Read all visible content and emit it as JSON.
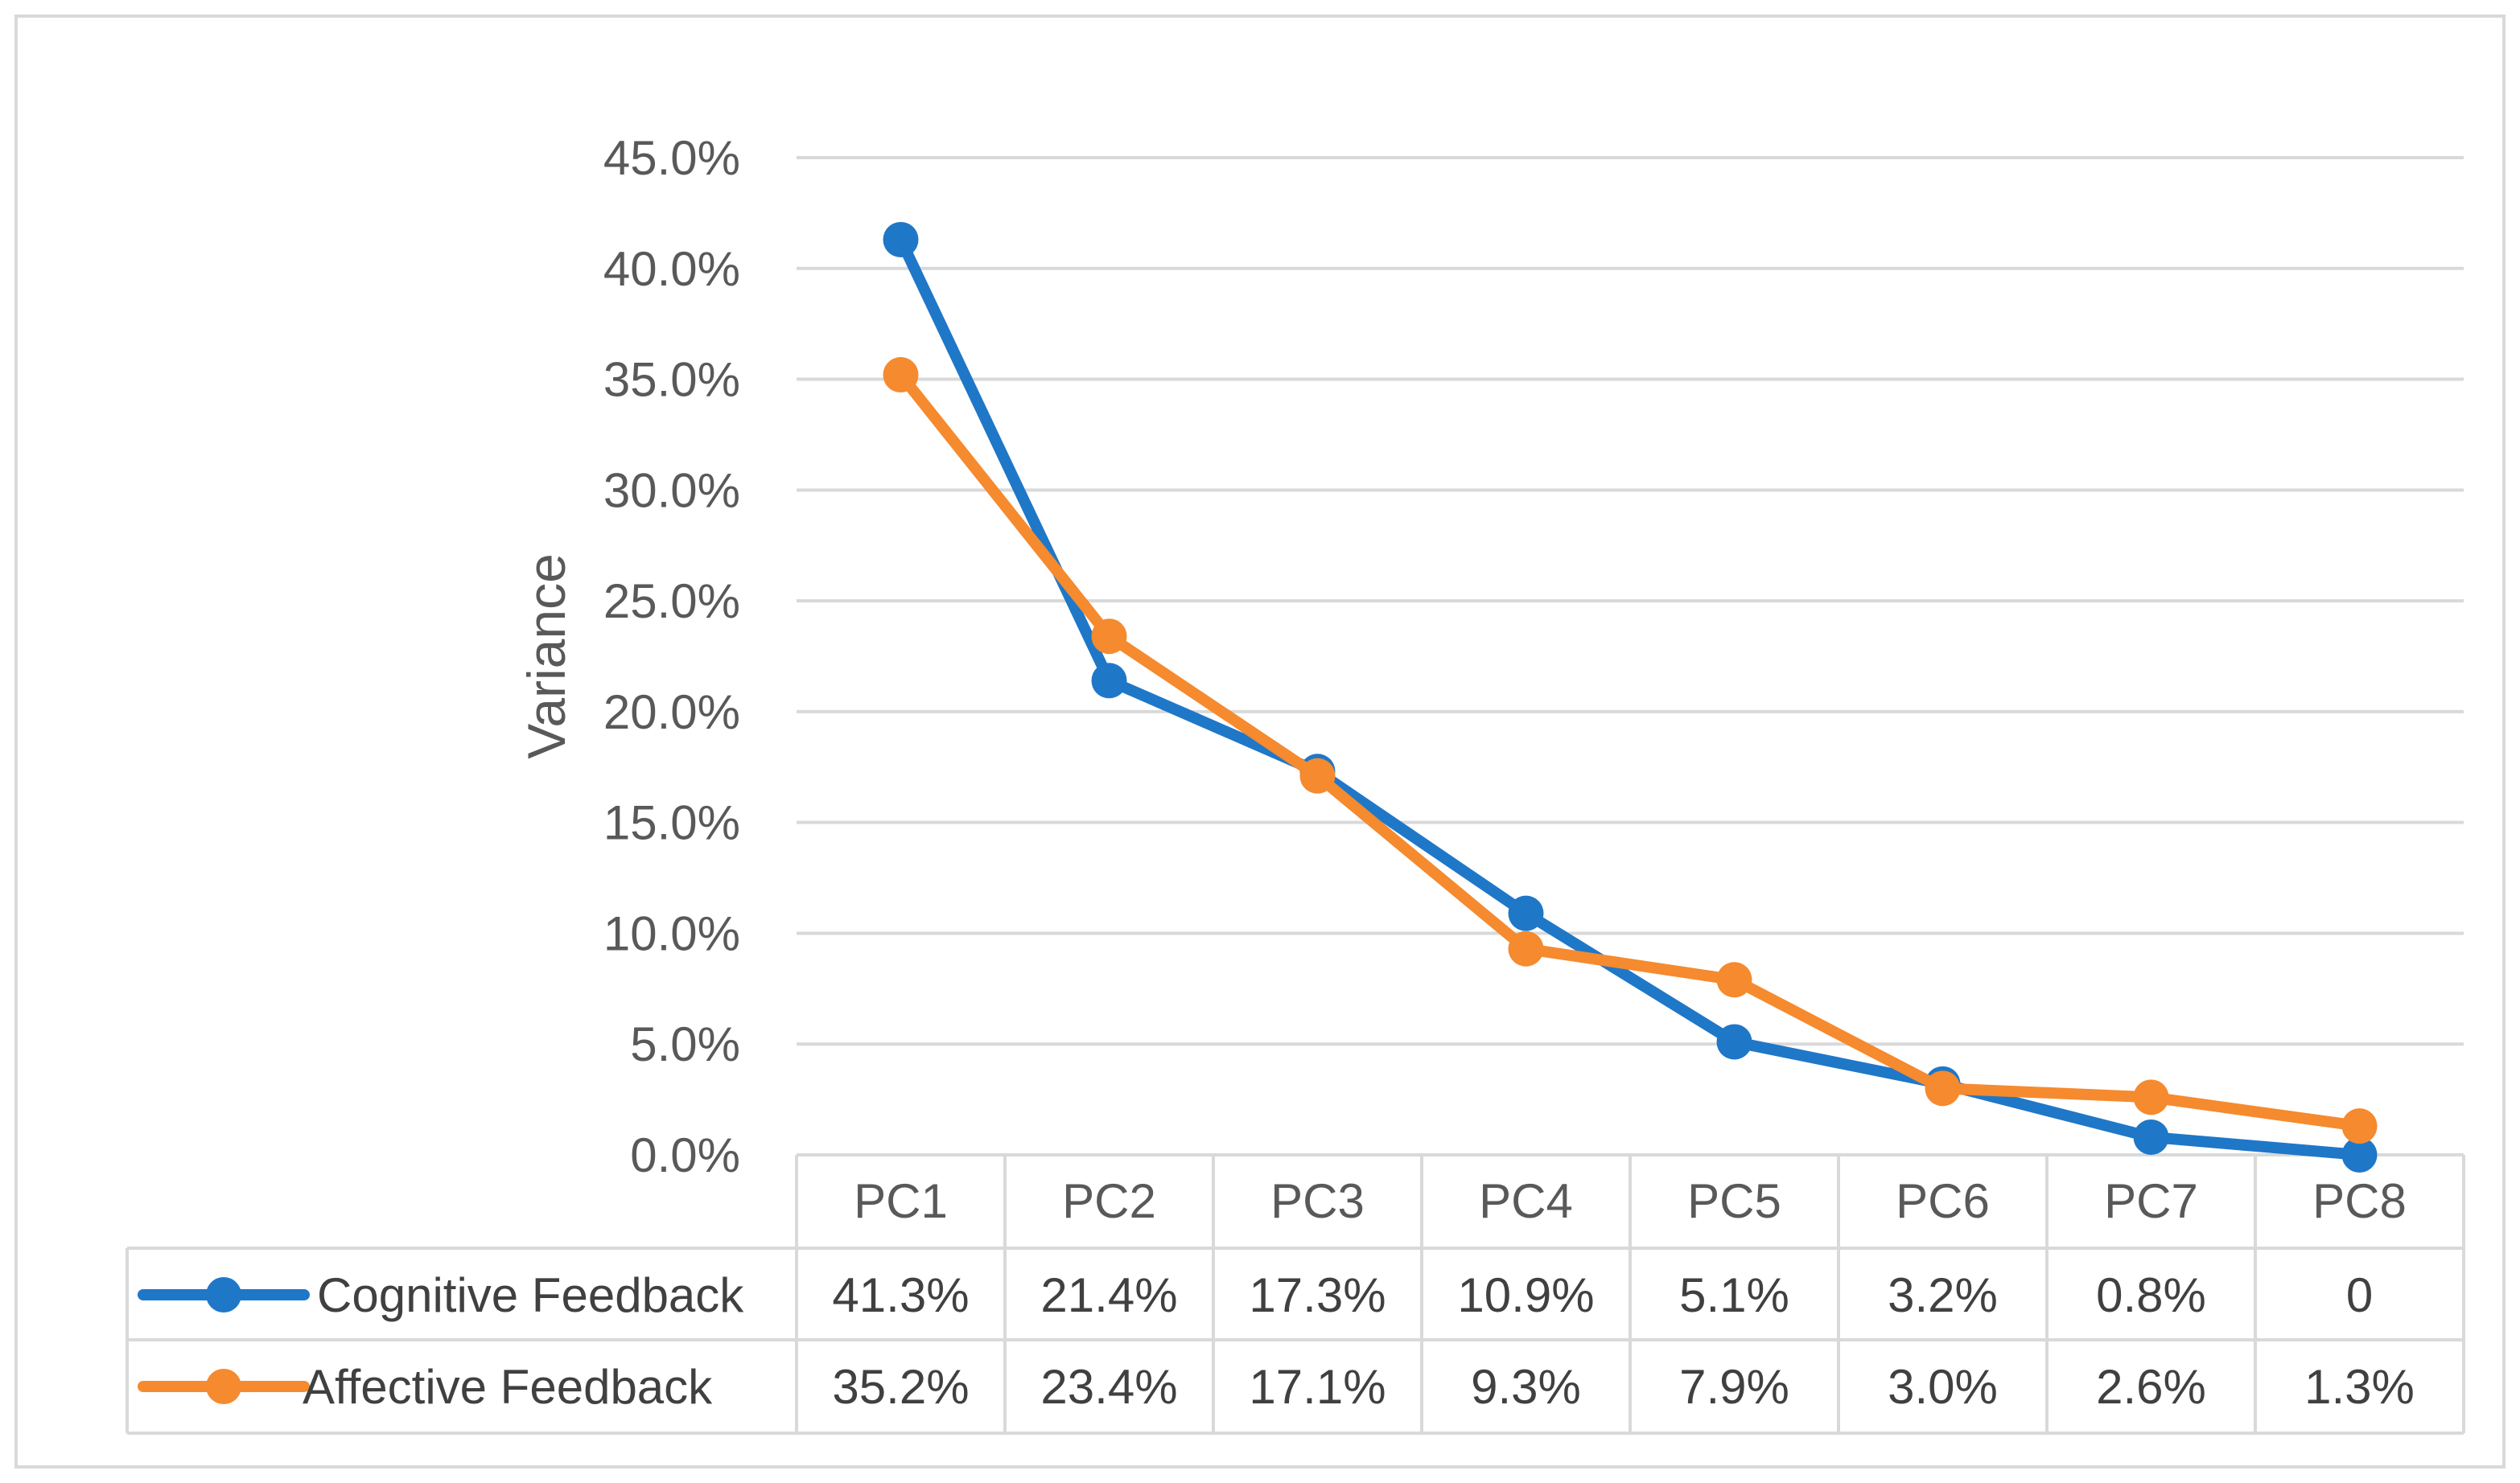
{
  "chart_data": {
    "type": "line",
    "title": "",
    "xlabel": "",
    "ylabel": "Variance",
    "ylim": [
      0,
      0.45
    ],
    "yticks": [
      0,
      0.05,
      0.1,
      0.15,
      0.2,
      0.25,
      0.3,
      0.35,
      0.4,
      0.45
    ],
    "ytick_labels": [
      "0.0%",
      "5.0%",
      "10.0%",
      "15.0%",
      "20.0%",
      "25.0%",
      "30.0%",
      "35.0%",
      "40.0%",
      "45.0%"
    ],
    "grid": true,
    "legend": "data-table-left",
    "categories": [
      "PC1",
      "PC2",
      "PC3",
      "PC4",
      "PC5",
      "PC6",
      "PC7",
      "PC8"
    ],
    "series": [
      {
        "name": "Cognitive Feedback",
        "color": "#1f77c8",
        "values": [
          0.413,
          0.214,
          0.173,
          0.109,
          0.051,
          0.032,
          0.008,
          0.0
        ],
        "labels": [
          "41.3%",
          "21.4%",
          "17.3%",
          "10.9%",
          "5.1%",
          "3.2%",
          "0.8%",
          "0"
        ]
      },
      {
        "name": "Affective Feedback",
        "color": "#f58a2e",
        "values": [
          0.352,
          0.234,
          0.171,
          0.093,
          0.079,
          0.03,
          0.026,
          0.013
        ],
        "labels": [
          "35.2%",
          "23.4%",
          "17.1%",
          "9.3%",
          "7.9%",
          "3.0%",
          "2.6%",
          "1.3%"
        ]
      }
    ]
  }
}
